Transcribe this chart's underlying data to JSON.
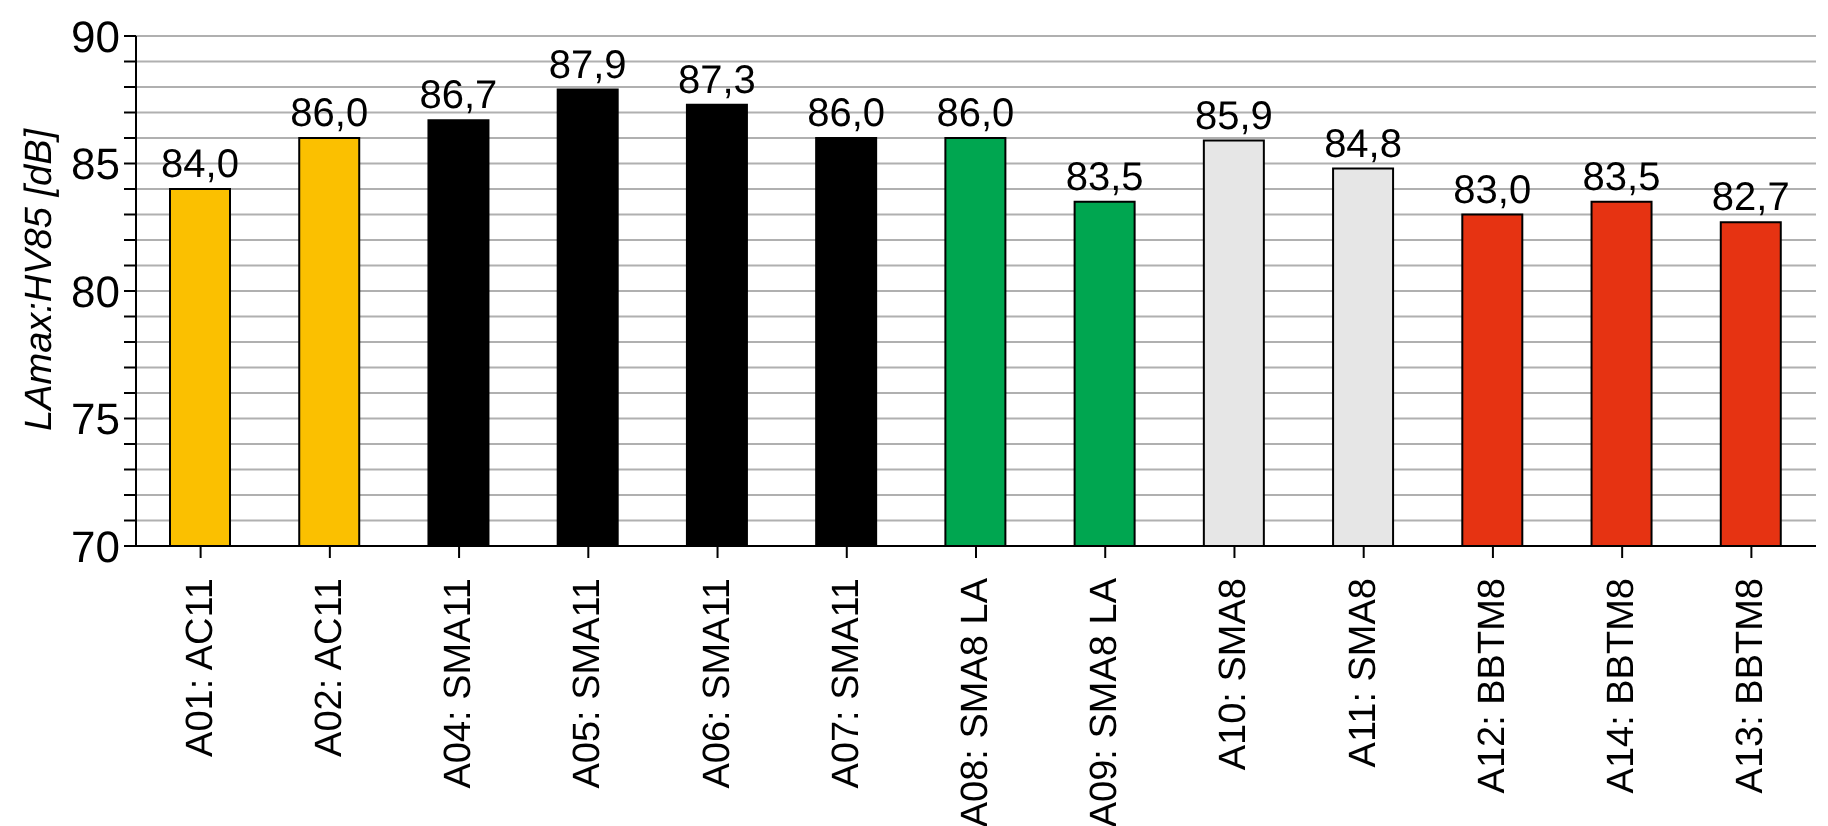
{
  "chart_data": {
    "type": "bar",
    "ylabel": "LAmax:HV85 [dB]",
    "categories": [
      "A01: AC11",
      "A02: AC11",
      "A04: SMA11",
      "A05: SMA11",
      "A06: SMA11",
      "A07: SMA11",
      "A08: SMA8 LA",
      "A09: SMA8 LA",
      "A10: SMA8",
      "A11: SMA8",
      "A12: BBTM8",
      "A14: BBTM8",
      "A13: BBTM8"
    ],
    "values": [
      84.0,
      86.0,
      86.7,
      87.9,
      87.3,
      86.0,
      86.0,
      83.5,
      85.9,
      84.8,
      83.0,
      83.5,
      82.7
    ],
    "value_labels": [
      "84,0",
      "86,0",
      "86,7",
      "87,9",
      "87,3",
      "86,0",
      "86,0",
      "83,5",
      "85,9",
      "84,8",
      "83,0",
      "83,5",
      "82,7"
    ],
    "colors": [
      "#fbc000",
      "#fbc000",
      "#000000",
      "#000000",
      "#000000",
      "#000000",
      "#00a650",
      "#00a650",
      "#e6e6e6",
      "#e6e6e6",
      "#e63312",
      "#e63312",
      "#e63312"
    ],
    "ylim": [
      70,
      90
    ],
    "yticks": [
      70,
      {
        "value": 71,
        "label": null
      },
      {
        "value": 72,
        "label": null
      },
      {
        "value": 73,
        "label": null
      },
      {
        "value": 74,
        "label": null
      },
      75,
      {
        "value": 76,
        "label": null
      },
      {
        "value": 77,
        "label": null
      },
      {
        "value": 78,
        "label": null
      },
      {
        "value": 79,
        "label": null
      },
      80,
      {
        "value": 81,
        "label": null
      },
      {
        "value": 82,
        "label": null
      },
      {
        "value": 83,
        "label": null
      },
      {
        "value": 84,
        "label": null
      },
      85,
      {
        "value": 86,
        "label": null
      },
      {
        "value": 87,
        "label": null
      },
      {
        "value": 88,
        "label": null
      },
      {
        "value": 89,
        "label": null
      },
      90
    ],
    "grid": "y"
  }
}
